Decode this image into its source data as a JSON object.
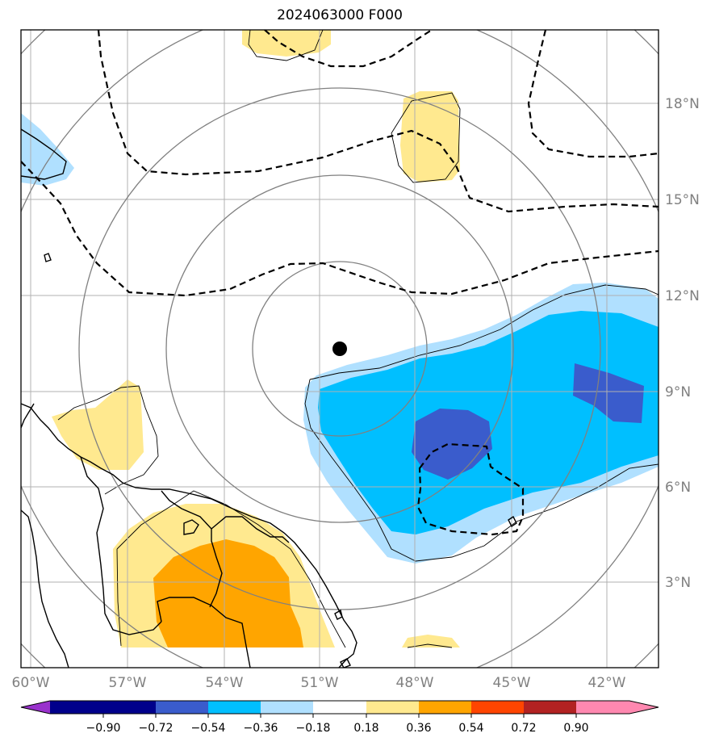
{
  "title": "2024063000 F000",
  "map": {
    "lon_range": [
      -60.25,
      -40.5
    ],
    "lat_range": [
      0.5,
      20.25
    ],
    "lon_ticks": [
      {
        "value": -60,
        "label": "60°W"
      },
      {
        "value": -57,
        "label": "57°W"
      },
      {
        "value": -54,
        "label": "54°W"
      },
      {
        "value": -51,
        "label": "51°W"
      },
      {
        "value": -48,
        "label": "48°W"
      },
      {
        "value": -45,
        "label": "45°W"
      },
      {
        "value": -42,
        "label": "42°W"
      }
    ],
    "lat_ticks": [
      {
        "value": 3,
        "label": "3°N"
      },
      {
        "value": 6,
        "label": "6°N"
      },
      {
        "value": 9,
        "label": "9°N"
      },
      {
        "value": 12,
        "label": "12°N"
      },
      {
        "value": 15,
        "label": "15°N"
      },
      {
        "value": 18,
        "label": "18°N"
      }
    ],
    "storm_center": {
      "lon": -50.3,
      "lat": 10.3
    },
    "gridlines": true
  },
  "colorbar": {
    "levels": [
      "−0.90",
      "−0.72",
      "−0.54",
      "−0.36",
      "−0.18",
      "0.18",
      "0.36",
      "0.54",
      "0.72",
      "0.90"
    ],
    "colors": [
      "#9932cc",
      "#00008b",
      "#3a5ccc",
      "#00bfff",
      "#b0e0ff",
      "#ffffff",
      "#ffe98f",
      "#ffa500",
      "#ff4500",
      "#b22222",
      "#ff88b0"
    ]
  },
  "colors": {
    "neg_light": "#b0e0ff",
    "neg_mid": "#00bfff",
    "neg_dark": "#3a5ccc",
    "pos_light": "#ffe98f",
    "pos_mid": "#ffa500",
    "grid": "#b0b0b0",
    "range_rings": "#808080",
    "dashed_contours": "#000000"
  }
}
